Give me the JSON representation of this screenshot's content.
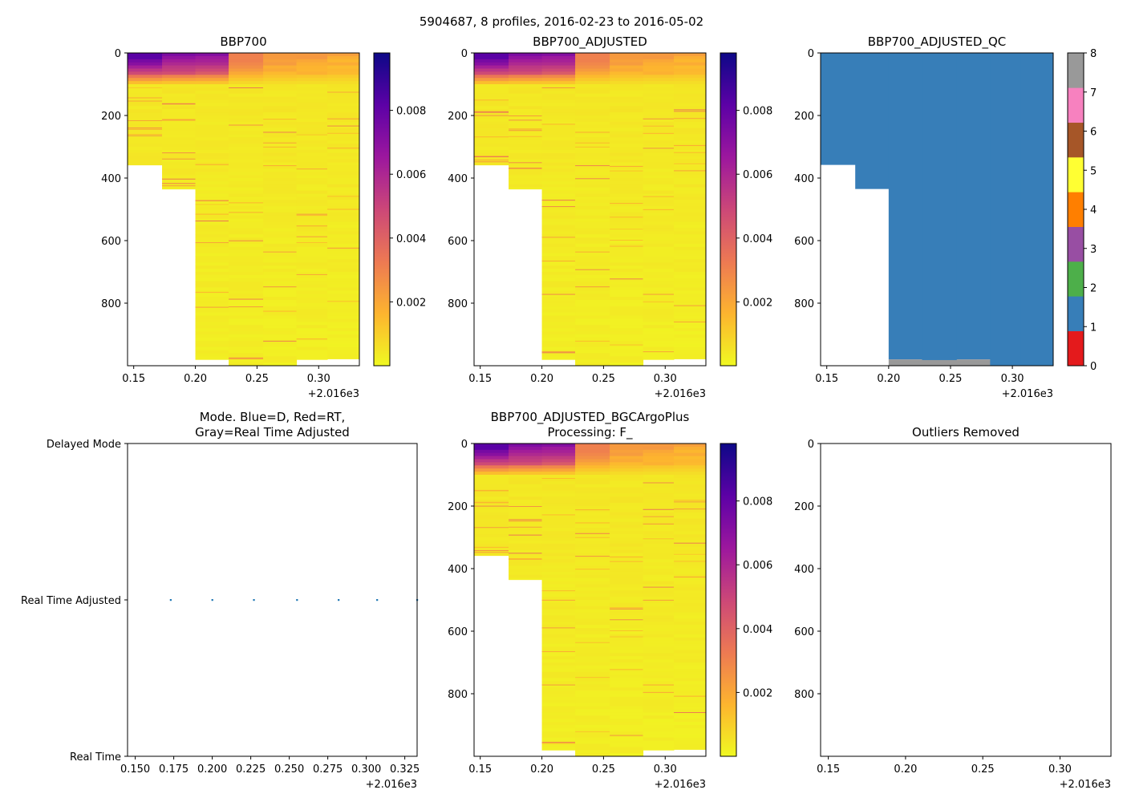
{
  "figure": {
    "suptitle": "5904687, 8 profiles, 2016-02-23 to 2016-05-02"
  },
  "colors": {
    "plasma_stops": [
      "#0d0887",
      "#5c01a6",
      "#9c179e",
      "#cc4778",
      "#ed7953",
      "#fdb42f",
      "#f0f921"
    ],
    "qc_classes": [
      "#e41a1c",
      "#377eb8",
      "#4daf4a",
      "#984ea3",
      "#ff7f00",
      "#ffff33",
      "#a65628",
      "#f781bf",
      "#999999"
    ],
    "mode_dot": "#1f77b4"
  },
  "chart_data": [
    {
      "id": "bbp700",
      "type": "heatmap",
      "title": "BBP700",
      "xlim": [
        2016.145,
        2016.333
      ],
      "ylim": [
        1000,
        0
      ],
      "xticks": [
        2016.15,
        2016.2,
        2016.25,
        2016.3
      ],
      "xtick_labels": [
        "0.15",
        "0.20",
        "0.25",
        "0.30"
      ],
      "yticks": [
        0,
        200,
        400,
        600,
        800
      ],
      "ytick_labels": [
        "0",
        "200",
        "400",
        "600",
        "800"
      ],
      "offset_label": "+2.016e3",
      "colorbar": {
        "vmin": 0,
        "vmax": 0.0098,
        "ticks": [
          0.002,
          0.004,
          0.006,
          0.008
        ],
        "tick_labels": [
          "0.002",
          "0.004",
          "0.006",
          "0.008"
        ]
      },
      "profiles": [
        {
          "x0": 2016.145,
          "x1": 2016.173,
          "max_depth": 358,
          "surface": 0.0082
        },
        {
          "x0": 2016.173,
          "x1": 2016.2,
          "max_depth": 435,
          "surface": 0.0072
        },
        {
          "x0": 2016.2,
          "x1": 2016.227,
          "max_depth": 980,
          "surface": 0.0068
        },
        {
          "x0": 2016.227,
          "x1": 2016.255,
          "max_depth": 1000,
          "surface": 0.003
        },
        {
          "x0": 2016.255,
          "x1": 2016.282,
          "max_depth": 1000,
          "surface": 0.0023
        },
        {
          "x0": 2016.282,
          "x1": 2016.307,
          "max_depth": 980,
          "surface": 0.002
        },
        {
          "x0": 2016.307,
          "x1": 2016.333,
          "max_depth": 978,
          "surface": 0.0018
        }
      ]
    },
    {
      "id": "bbp700_adj",
      "type": "heatmap",
      "title": "BBP700_ADJUSTED",
      "xlim": [
        2016.145,
        2016.333
      ],
      "ylim": [
        1000,
        0
      ],
      "xticks": [
        2016.15,
        2016.2,
        2016.25,
        2016.3
      ],
      "xtick_labels": [
        "0.15",
        "0.20",
        "0.25",
        "0.30"
      ],
      "yticks": [
        0,
        200,
        400,
        600,
        800
      ],
      "ytick_labels": [
        "0",
        "200",
        "400",
        "600",
        "800"
      ],
      "offset_label": "+2.016e3",
      "colorbar": {
        "vmin": 0,
        "vmax": 0.0098,
        "ticks": [
          0.002,
          0.004,
          0.006,
          0.008
        ],
        "tick_labels": [
          "0.002",
          "0.004",
          "0.006",
          "0.008"
        ]
      },
      "profiles": [
        {
          "x0": 2016.145,
          "x1": 2016.173,
          "max_depth": 358,
          "surface": 0.0082
        },
        {
          "x0": 2016.173,
          "x1": 2016.2,
          "max_depth": 435,
          "surface": 0.0072
        },
        {
          "x0": 2016.2,
          "x1": 2016.227,
          "max_depth": 980,
          "surface": 0.0068
        },
        {
          "x0": 2016.227,
          "x1": 2016.255,
          "max_depth": 1000,
          "surface": 0.003
        },
        {
          "x0": 2016.255,
          "x1": 2016.282,
          "max_depth": 1000,
          "surface": 0.0023
        },
        {
          "x0": 2016.282,
          "x1": 2016.307,
          "max_depth": 980,
          "surface": 0.002
        },
        {
          "x0": 2016.307,
          "x1": 2016.333,
          "max_depth": 978,
          "surface": 0.0018
        }
      ]
    },
    {
      "id": "bbp700_qc",
      "type": "heatmap",
      "title": "BBP700_ADJUSTED_QC",
      "xlim": [
        2016.145,
        2016.333
      ],
      "ylim": [
        1000,
        0
      ],
      "xticks": [
        2016.15,
        2016.2,
        2016.25,
        2016.3
      ],
      "xtick_labels": [
        "0.15",
        "0.20",
        "0.25",
        "0.30"
      ],
      "yticks": [
        0,
        200,
        400,
        600,
        800
      ],
      "ytick_labels": [
        "0",
        "200",
        "400",
        "600",
        "800"
      ],
      "offset_label": "+2.016e3",
      "colorbar": {
        "vmin": 0,
        "vmax": 8,
        "ticks": [
          0,
          1,
          2,
          3,
          4,
          5,
          6,
          7,
          8
        ],
        "tick_labels": [
          "0",
          "1",
          "2",
          "3",
          "4",
          "5",
          "6",
          "7",
          "8"
        ]
      },
      "qc_cells": [
        {
          "x0": 2016.145,
          "x1": 2016.173,
          "d0": 0,
          "d1": 358,
          "flag": 1
        },
        {
          "x0": 2016.173,
          "x1": 2016.2,
          "d0": 0,
          "d1": 435,
          "flag": 1
        },
        {
          "x0": 2016.2,
          "x1": 2016.227,
          "d0": 0,
          "d1": 980,
          "flag": 1
        },
        {
          "x0": 2016.2,
          "x1": 2016.227,
          "d0": 980,
          "d1": 1000,
          "flag": 8
        },
        {
          "x0": 2016.227,
          "x1": 2016.255,
          "d0": 0,
          "d1": 982,
          "flag": 1
        },
        {
          "x0": 2016.227,
          "x1": 2016.255,
          "d0": 982,
          "d1": 1000,
          "flag": 8
        },
        {
          "x0": 2016.255,
          "x1": 2016.282,
          "d0": 0,
          "d1": 980,
          "flag": 1
        },
        {
          "x0": 2016.255,
          "x1": 2016.282,
          "d0": 980,
          "d1": 1000,
          "flag": 8
        },
        {
          "x0": 2016.282,
          "x1": 2016.307,
          "d0": 0,
          "d1": 1000,
          "flag": 1
        },
        {
          "x0": 2016.307,
          "x1": 2016.333,
          "d0": 0,
          "d1": 1000,
          "flag": 1
        }
      ]
    },
    {
      "id": "mode",
      "type": "scatter",
      "title_lines": [
        "Mode. Blue=D, Red=RT,",
        "Gray=Real Time Adjusted"
      ],
      "xlim": [
        2016.145,
        2016.333
      ],
      "ylim": [
        0,
        2
      ],
      "xticks": [
        2016.15,
        2016.175,
        2016.2,
        2016.225,
        2016.25,
        2016.275,
        2016.3,
        2016.325
      ],
      "xtick_labels": [
        "0.150",
        "0.175",
        "0.200",
        "0.225",
        "0.250",
        "0.275",
        "0.300",
        "0.325"
      ],
      "yticks": [
        2,
        1,
        0
      ],
      "ytick_labels": [
        "Delayed Mode",
        "Real Time Adjusted",
        "Real Time"
      ],
      "offset_label": "+2.016e3",
      "points": [
        {
          "x": 2016.173,
          "y": 1
        },
        {
          "x": 2016.2,
          "y": 1
        },
        {
          "x": 2016.227,
          "y": 1
        },
        {
          "x": 2016.255,
          "y": 1
        },
        {
          "x": 2016.282,
          "y": 1
        },
        {
          "x": 2016.307,
          "y": 1
        },
        {
          "x": 2016.333,
          "y": 1
        }
      ]
    },
    {
      "id": "bbp700_bgc",
      "type": "heatmap",
      "title_lines": [
        "BBP700_ADJUSTED_BGCArgoPlus",
        "Processing: F_"
      ],
      "xlim": [
        2016.145,
        2016.333
      ],
      "ylim": [
        1000,
        0
      ],
      "xticks": [
        2016.15,
        2016.2,
        2016.25,
        2016.3
      ],
      "xtick_labels": [
        "0.15",
        "0.20",
        "0.25",
        "0.30"
      ],
      "yticks": [
        0,
        200,
        400,
        600,
        800
      ],
      "ytick_labels": [
        "0",
        "200",
        "400",
        "600",
        "800"
      ],
      "offset_label": "+2.016e3",
      "colorbar": {
        "vmin": 0,
        "vmax": 0.0098,
        "ticks": [
          0.002,
          0.004,
          0.006,
          0.008
        ],
        "tick_labels": [
          "0.002",
          "0.004",
          "0.006",
          "0.008"
        ]
      },
      "profiles": [
        {
          "x0": 2016.145,
          "x1": 2016.173,
          "max_depth": 358,
          "surface": 0.0082
        },
        {
          "x0": 2016.173,
          "x1": 2016.2,
          "max_depth": 435,
          "surface": 0.0072
        },
        {
          "x0": 2016.2,
          "x1": 2016.227,
          "max_depth": 980,
          "surface": 0.0068
        },
        {
          "x0": 2016.227,
          "x1": 2016.255,
          "max_depth": 1000,
          "surface": 0.003
        },
        {
          "x0": 2016.255,
          "x1": 2016.282,
          "max_depth": 1000,
          "surface": 0.0023
        },
        {
          "x0": 2016.282,
          "x1": 2016.307,
          "max_depth": 980,
          "surface": 0.002
        },
        {
          "x0": 2016.307,
          "x1": 2016.333,
          "max_depth": 978,
          "surface": 0.0018
        }
      ]
    },
    {
      "id": "outliers",
      "type": "scatter",
      "title": "Outliers Removed",
      "xlim": [
        2016.145,
        2016.333
      ],
      "ylim": [
        1000,
        0
      ],
      "xticks": [
        2016.15,
        2016.2,
        2016.25,
        2016.3
      ],
      "xtick_labels": [
        "0.15",
        "0.20",
        "0.25",
        "0.30"
      ],
      "yticks": [
        0,
        200,
        400,
        600,
        800
      ],
      "ytick_labels": [
        "0",
        "200",
        "400",
        "600",
        "800"
      ],
      "offset_label": "+2.016e3",
      "points": []
    }
  ]
}
